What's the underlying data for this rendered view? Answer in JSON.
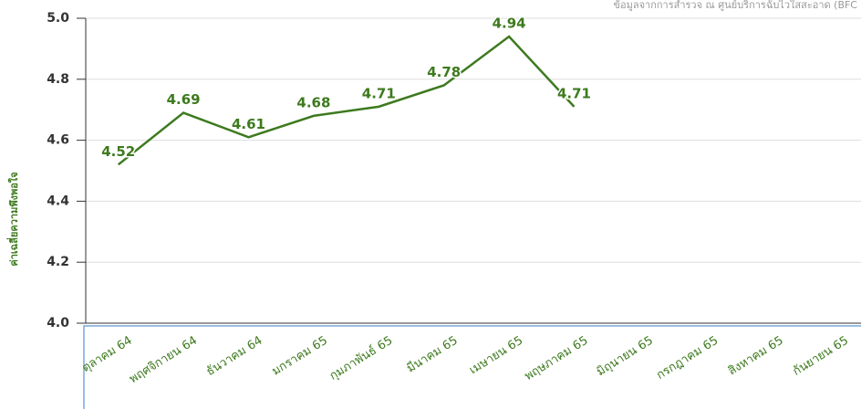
{
  "chart_data": {
    "type": "line",
    "subtitle": "ข้อมูลจากการสำรวจ ณ ศูนย์บริการฉับไวใสสะอาด (BFC",
    "y_label": "ค่าเฉลี่ยความพึงพอใจ",
    "categories": [
      "ตุลาคม 64",
      "พฤศจิกายน 64",
      "ธันวาคม 64",
      "มกราคม 65",
      "กุมภาพันธ์ 65",
      "มีนาคม 65",
      "เมษายน 65",
      "พฤษภาคม 65",
      "มิถุนายน 65",
      "กรกฎาคม 65",
      "สิงหาคม 65",
      "กันยายน 65"
    ],
    "series": [
      {
        "name": "ค่าเฉลี่ยความพึงพอใจ",
        "color": "#3d7a1e",
        "values": [
          4.52,
          4.69,
          4.61,
          4.68,
          4.71,
          4.78,
          4.94,
          4.71,
          null,
          null,
          null,
          null
        ]
      }
    ],
    "ylim": [
      4.0,
      5.0
    ],
    "yticks": [
      {
        "value": 4.0,
        "label": "4.0"
      },
      4.2,
      4.4,
      4.6,
      4.8,
      {
        "value": 5.0,
        "label": "5.0"
      }
    ],
    "grid": true
  }
}
